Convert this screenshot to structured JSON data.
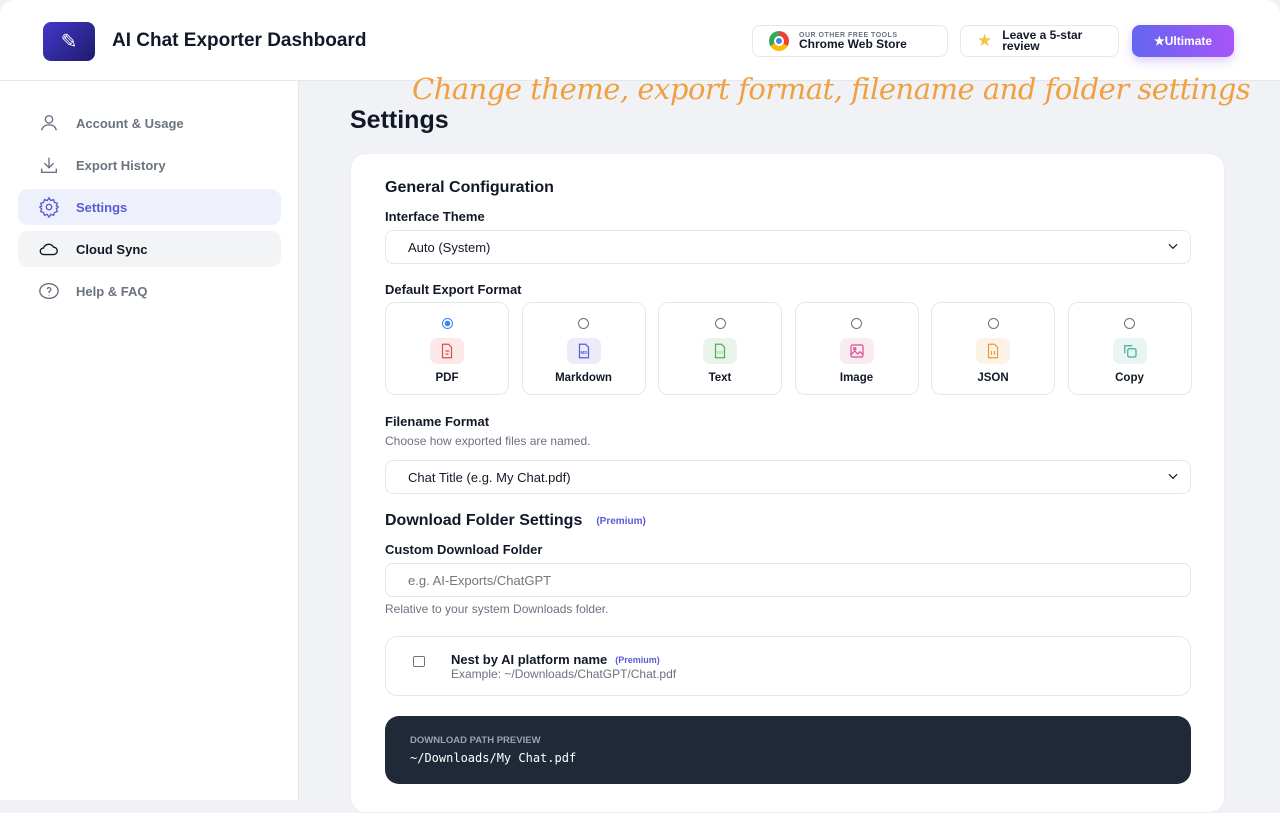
{
  "header": {
    "title": "AI Chat Exporter Dashboard",
    "chrome_store": {
      "small": "OUR OTHER FREE TOOLS",
      "label": "Chrome Web Store"
    },
    "review": {
      "line1": "Leave a 5-star",
      "line2": "review"
    },
    "ultimate_label": "★Ultimate"
  },
  "sidebar": {
    "items": [
      {
        "label": "Account & Usage",
        "icon": "user-icon"
      },
      {
        "label": "Export History",
        "icon": "download-icon"
      },
      {
        "label": "Settings",
        "icon": "gear-icon",
        "active": true
      },
      {
        "label": "Cloud Sync",
        "icon": "cloud-icon"
      },
      {
        "label": "Help & FAQ",
        "icon": "help-icon"
      }
    ]
  },
  "annotation": "Change theme, export format, filename and folder settings",
  "page_title": "Settings",
  "general": {
    "heading": "General Configuration",
    "theme_label": "Interface Theme",
    "theme_value": "Auto (System)",
    "format_label": "Default Export Format",
    "formats": [
      {
        "label": "PDF",
        "selected": true,
        "color": "#dc4c4c"
      },
      {
        "label": "Markdown",
        "selected": false,
        "color": "#5b5bd6"
      },
      {
        "label": "Text",
        "selected": false,
        "color": "#4caf50"
      },
      {
        "label": "Image",
        "selected": false,
        "color": "#d64f8e"
      },
      {
        "label": "JSON",
        "selected": false,
        "color": "#e89a3c"
      },
      {
        "label": "Copy",
        "selected": false,
        "color": "#3fae94"
      }
    ],
    "filename_label": "Filename Format",
    "filename_help": "Choose how exported files are named.",
    "filename_value": "Chat Title (e.g. My Chat.pdf)"
  },
  "folder": {
    "heading": "Download Folder Settings",
    "premium": "(Premium)",
    "custom_label": "Custom Download Folder",
    "custom_placeholder": "e.g. AI-Exports/ChatGPT",
    "custom_help": "Relative to your system Downloads folder.",
    "nest_label": "Nest by AI platform name",
    "nest_premium": "(Premium)",
    "nest_example": "Example: ~/Downloads/ChatGPT/Chat.pdf",
    "nest_checked": false,
    "preview_label": "DOWNLOAD PATH PREVIEW",
    "preview_value": "~/Downloads/My Chat.pdf"
  }
}
